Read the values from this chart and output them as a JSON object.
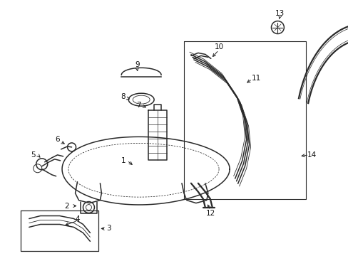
{
  "bg_color": "#ffffff",
  "line_color": "#2a2a2a",
  "lw_main": 1.1,
  "lw_thick": 1.6,
  "lw_thin": 0.6,
  "fontsize": 7.5
}
